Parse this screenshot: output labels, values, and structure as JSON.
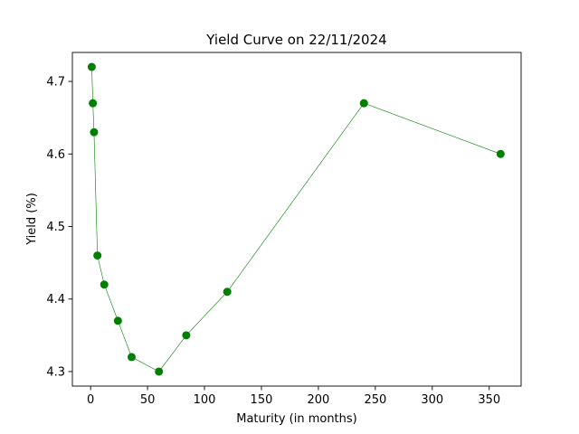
{
  "chart_data": {
    "type": "line",
    "title": "Yield Curve on 22/11/2024",
    "xlabel": "Maturity (in months)",
    "ylabel": "Yield (%)",
    "xlim": [
      -16,
      378
    ],
    "ylim": [
      4.28,
      4.74
    ],
    "xticks": [
      0,
      50,
      100,
      150,
      200,
      250,
      300,
      350
    ],
    "yticks": [
      4.3,
      4.4,
      4.5,
      4.6,
      4.7
    ],
    "grid": false,
    "series": [
      {
        "x": [
          1,
          2,
          3,
          6,
          12,
          24,
          36,
          60,
          84,
          120,
          240,
          360
        ],
        "y": [
          4.72,
          4.67,
          4.63,
          4.46,
          4.42,
          4.37,
          4.32,
          4.3,
          4.35,
          4.41,
          4.67,
          4.6
        ],
        "color": "#008000",
        "marker": "circle"
      }
    ]
  }
}
